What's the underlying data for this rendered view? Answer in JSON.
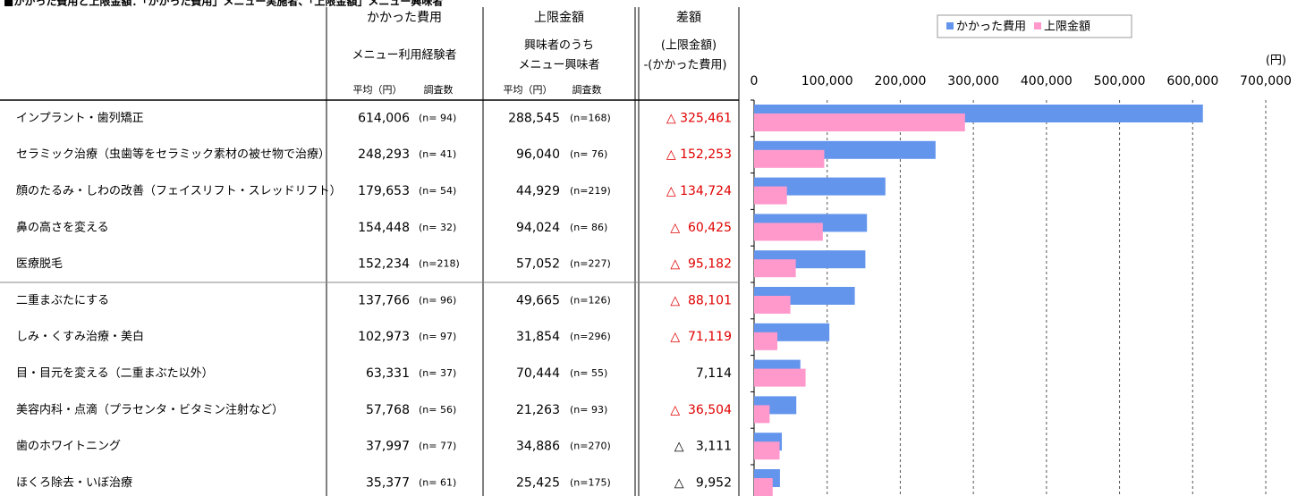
{
  "title": "■かかった費用と上限金額：「かかった費用」メニュー実施者、「上限金額」メニュー興味者",
  "table": {
    "header": {
      "cost": "かかった費用",
      "cost_sub": "メニュー利用経験者",
      "avg": "平均（円）",
      "count": "調査数",
      "limit": "上限金額",
      "limit_sub": [
        "興味者のうち",
        "メニュー興味者"
      ],
      "diff": "差額",
      "diff_sub": [
        "(上限金額)",
        "-(かかった費用)"
      ]
    },
    "rows": [
      {
        "name": "インプラント・歯列矯正",
        "cost_n": "(n= 94)",
        "limit_n": "(n=168)",
        "diff": "△ 325,461",
        "diff_color": "#e00000"
      },
      {
        "name": "セラミック治療（虫歯等をセラミック素材の被せ物で治療）",
        "cost_n": "(n= 41)",
        "limit_n": "(n= 76)",
        "diff": "△ 152,253",
        "diff_color": "#e00000"
      },
      {
        "name": "顔のたるみ・しわの改善（フェイスリフト・スレッドリフト）",
        "cost_n": "(n= 54)",
        "limit_n": "(n=219)",
        "diff": "△ 134,724",
        "diff_color": "#e00000"
      },
      {
        "name": "鼻の高さを変える",
        "cost_n": "(n= 32)",
        "limit_n": "(n= 86)",
        "diff": "△  60,425",
        "diff_color": "#e00000"
      },
      {
        "name": "医療脱毛",
        "cost_n": "(n=218)",
        "limit_n": "(n=227)",
        "diff": "△  95,182",
        "diff_color": "#e00000"
      },
      {
        "name": "二重まぶたにする",
        "cost_n": "(n= 96)",
        "limit_n": "(n=126)",
        "diff": "△  88,101",
        "diff_color": "#e00000"
      },
      {
        "name": "しみ・くすみ治療・美白",
        "cost_n": "(n= 97)",
        "limit_n": "(n=296)",
        "diff": "△  71,119",
        "diff_color": "#e00000"
      },
      {
        "name": "目・目元を変える（二重まぶた以外）",
        "cost_n": "(n= 37)",
        "limit_n": "(n= 55)",
        "diff": "7,114",
        "diff_color": "#000000"
      },
      {
        "name": "美容内科・点滴（プラセンタ・ビタミン注射など）",
        "cost_n": "(n= 56)",
        "limit_n": "(n= 93)",
        "diff": "△  36,504",
        "diff_color": "#e00000"
      },
      {
        "name": "歯のホワイトニング",
        "cost_n": "(n= 77)",
        "limit_n": "(n=270)",
        "diff": "△   3,111",
        "diff_color": "#000000"
      },
      {
        "name": "ほくろ除去・いぼ治療",
        "cost_n": "(n= 61)",
        "limit_n": "(n=175)",
        "diff": "△   9,952",
        "diff_color": "#000000"
      }
    ]
  },
  "chart_data": {
    "type": "hbar",
    "unit": "(円)",
    "xlim": [
      0,
      700000
    ],
    "xticks": [
      0,
      {
        "value": 100000,
        "label": "100,000"
      },
      {
        "value": 200000,
        "label": "200,000"
      },
      {
        "value": 300000,
        "label": "300,000"
      },
      {
        "value": 400000,
        "label": "400,000"
      },
      {
        "value": 500000,
        "label": "500,000"
      },
      {
        "value": 600000,
        "label": "600,000"
      },
      {
        "value": 700000,
        "label": "700,000"
      }
    ],
    "grid": true,
    "series": [
      {
        "name": "かかった費用",
        "color": "#6495ed",
        "values": [
          614006,
          248293,
          179653,
          154448,
          152234,
          137766,
          102973,
          63331,
          57768,
          37997,
          35377
        ],
        "value_labels": [
          "614,006",
          "248,293",
          "179,653",
          "154,448",
          "152,234",
          "137,766",
          "102,973",
          "63,331",
          "57,768",
          "37,997",
          "35,377"
        ]
      },
      {
        "name": "上限金額",
        "color": "#ff99cc",
        "values": [
          288545,
          96040,
          44929,
          94024,
          57052,
          49665,
          31854,
          70444,
          21263,
          34886,
          25425
        ],
        "value_labels": [
          "288,545",
          "96,040",
          "44,929",
          "94,024",
          "57,052",
          "49,665",
          "31,854",
          "70,444",
          "21,263",
          "34,886",
          "25,425"
        ]
      }
    ]
  }
}
